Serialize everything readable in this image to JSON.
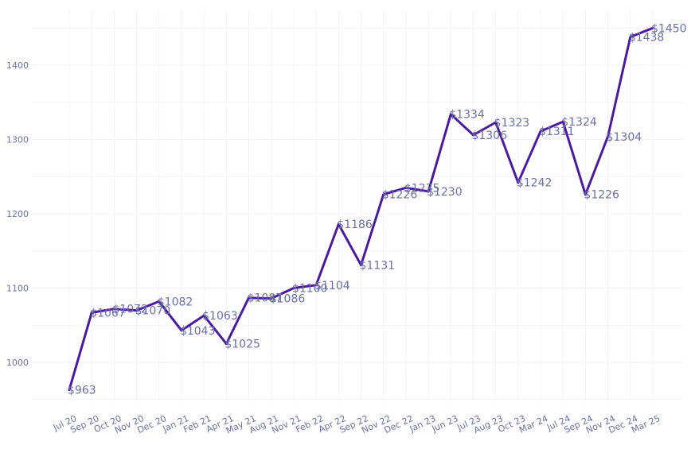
{
  "chart_data": {
    "type": "line",
    "title": "",
    "xlabel": "",
    "ylabel": "",
    "x": [
      "Jul 20",
      "Sep 20",
      "Oct 20",
      "Nov 20",
      "Dec 20",
      "Jan 21",
      "Feb 21",
      "Apr 21",
      "May 21",
      "Aug 21",
      "Nov 21",
      "Feb 22",
      "Apr 22",
      "Sep 22",
      "Nov 22",
      "Dec 22",
      "Jan 23",
      "Jun 23",
      "Jul 23",
      "Aug 23",
      "Oct 23",
      "Mar 24",
      "Jul 24",
      "Sep 24",
      "Nov 24",
      "Dec 24",
      "Mar 25"
    ],
    "series": [
      {
        "values": [
          963,
          1067,
          1072,
          1070,
          1082,
          1043,
          1063,
          1025,
          1087,
          1086,
          1100,
          1104,
          1186,
          1131,
          1226,
          1235,
          1230,
          1334,
          1306,
          1323,
          1242,
          1311,
          1324,
          1226,
          1304,
          1438,
          1450
        ],
        "labels": [
          "$963",
          "$1067",
          "$1072",
          "$1070",
          "$1082",
          "$1043",
          "$1063",
          "$1025",
          "$1087",
          "$1086",
          "$1100",
          "$1104",
          "$1186",
          "$1131",
          "$1226",
          "$1235",
          "$1230",
          "$1334",
          "$1306",
          "$1323",
          "$1242",
          "$1311",
          "$1324",
          "$1226",
          "$1304",
          "$1438",
          "$1450"
        ]
      }
    ],
    "y_ticks": [
      "1000",
      "1100",
      "1200",
      "1300",
      "1400"
    ],
    "ylim": [
      910,
      1460
    ],
    "grid": true,
    "legend": "none",
    "line_color": "#4a1aa0"
  }
}
